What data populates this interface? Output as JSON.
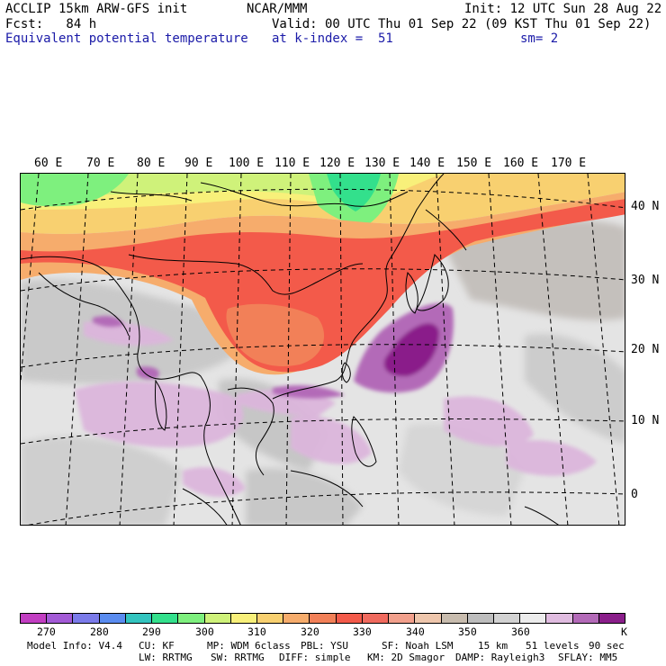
{
  "header": {
    "left1": "ACCLIP 15km ARW-GFS init",
    "center1": "NCAR/MMM",
    "right1": "Init: 12 UTC Sun 28 Aug 22",
    "left2": "Fcst:   84 h",
    "right2": "Valid: 00 UTC Thu 01 Sep 22 (09 KST Thu 01 Sep 22)",
    "field": "Equivalent potential temperature",
    "level": "at k-index =  51",
    "smooth": "sm= 2"
  },
  "map": {
    "lon_labels": [
      "60 E",
      "70 E",
      "80 E",
      "90 E",
      "100 E",
      "110 E",
      "120 E",
      "130 E",
      "140 E",
      "150 E",
      "160 E",
      "170 E"
    ],
    "lat_labels": [
      "40 N",
      "30 N",
      "20 N",
      "10 N",
      "0"
    ]
  },
  "colorbar": {
    "colors": [
      "#c23ec2",
      "#a35ad6",
      "#7b7bea",
      "#5a8cf0",
      "#33c4bf",
      "#33e08c",
      "#7ef07e",
      "#cff27a",
      "#f8f07a",
      "#f8d070",
      "#f6ac6c",
      "#f28058",
      "#f35a4a",
      "#f06a5e",
      "#f2a08c",
      "#eec6ac",
      "#c8bcae",
      "#bdbdbd",
      "#d2d2d2",
      "#ececec",
      "#e0bce0",
      "#b36ab8",
      "#8a1e8a"
    ],
    "tick_labels": [
      "270",
      "280",
      "290",
      "300",
      "310",
      "320",
      "330",
      "340",
      "350",
      "360"
    ],
    "unit": "K"
  },
  "model_info": {
    "line1": {
      "info": "Model Info: V4.4",
      "cu": "CU: KF",
      "mp": "MP: WDM 6class",
      "pbl": "PBL: YSU",
      "sf": "SF: Noah LSM",
      "res": "15 km",
      "levels": "51 levels",
      "dt": "90 sec"
    },
    "line2": {
      "lw": "LW: RRTMG",
      "sw": "SW: RRTMG",
      "diff": "DIFF: simple",
      "km": "KM: 2D Smagor",
      "damp": "DAMP: Rayleigh3",
      "sflay": "SFLAY: MM5"
    }
  }
}
